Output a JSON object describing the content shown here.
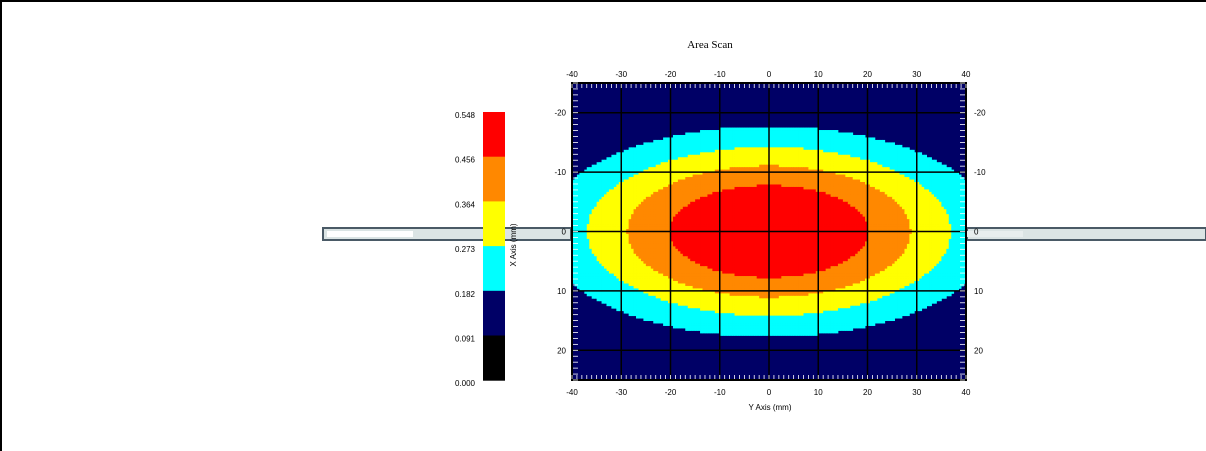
{
  "chart_data": {
    "type": "heatmap",
    "title": "Area Scan",
    "xlabel": "Y Axis (mm)",
    "ylabel": "X Axis (mm)",
    "x_ticks": [
      "-40",
      "-30",
      "-20",
      "-10",
      "0",
      "10",
      "20",
      "30",
      "40"
    ],
    "y_ticks": [
      "-20",
      "-10",
      "0",
      "10",
      "20"
    ],
    "xlim": [
      -40,
      40
    ],
    "ylim": [
      -25,
      25
    ],
    "colorbar": {
      "labels": [
        "0.548",
        "0.456",
        "0.364",
        "0.273",
        "0.182",
        "0.091",
        "0.000"
      ],
      "colors": [
        "#ff0000",
        "#ff8800",
        "#ffff00",
        "#00ffff",
        "#000066",
        "#000000"
      ]
    },
    "contour_levels": [
      0.091,
      0.182,
      0.273,
      0.364,
      0.456,
      0.548
    ],
    "grid": true,
    "legend_position": "left"
  }
}
